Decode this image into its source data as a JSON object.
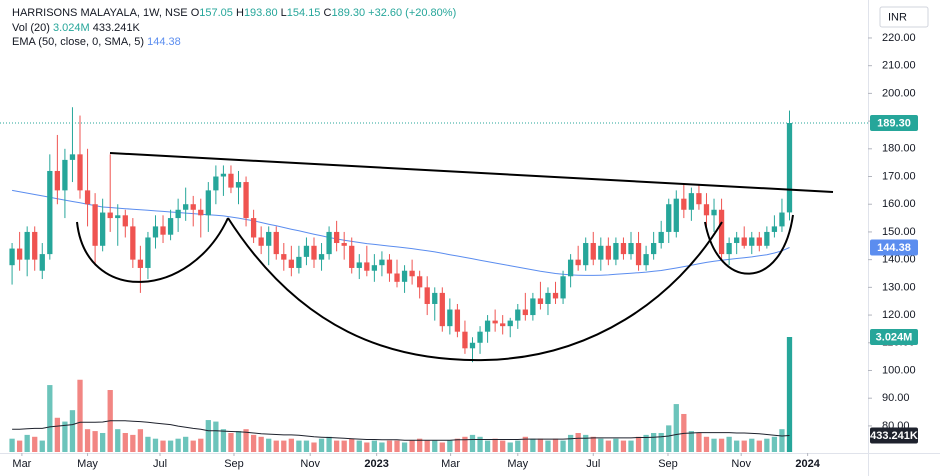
{
  "chart_data": {
    "type": "candlestick",
    "legend": {
      "symbol": "HARRISONS MALAYALA, 1W, NSE",
      "ohlc": [
        {
          "key": "O",
          "value": "157.05"
        },
        {
          "key": "H",
          "value": "193.80"
        },
        {
          "key": "L",
          "value": "154.15"
        },
        {
          "key": "C",
          "value": "189.30"
        }
      ],
      "change": "+32.60 (+20.80%)",
      "volume_name": "Vol (20)",
      "ema_name": "EMA (50, close, 0, SMA, 5)"
    },
    "currency": "INR",
    "up_color": "#26a69a",
    "down_color": "#ef5350",
    "up_volume_color": "#6cc4bb",
    "down_volume_color": "#f28683",
    "grid": false,
    "xlim": [
      -1.6,
      113.4
    ],
    "xticks": [
      {
        "value": 1.3,
        "label": "Mar"
      },
      {
        "value": 10,
        "label": "May"
      },
      {
        "value": 19.6,
        "label": "Jul"
      },
      {
        "value": 29.4,
        "label": "Sep"
      },
      {
        "value": 39.5,
        "label": "Nov"
      },
      {
        "value": 48.3,
        "label": "2023"
      },
      {
        "value": 58.1,
        "label": "Mar"
      },
      {
        "value": 67,
        "label": "May"
      },
      {
        "value": 77,
        "label": "Jul"
      },
      {
        "value": 86.9,
        "label": "Sep"
      },
      {
        "value": 96.6,
        "label": "Nov"
      },
      {
        "value": 105.4,
        "label": "2024"
      }
    ],
    "ylim": [
      69.5,
      233.7
    ],
    "yticks": [
      {
        "value": 220,
        "label": "220.00"
      },
      {
        "value": 210,
        "label": "210.00"
      },
      {
        "value": 200,
        "label": "200.00"
      },
      {
        "value": 190,
        "label": "190.00"
      },
      {
        "value": 180,
        "label": "180.00"
      },
      {
        "value": 170,
        "label": "170.00"
      },
      {
        "value": 160,
        "label": "160.00"
      },
      {
        "value": 150,
        "label": "150.00"
      },
      {
        "value": 140,
        "label": "140.00"
      },
      {
        "value": 130,
        "label": "130.00"
      },
      {
        "value": 120,
        "label": "120.00"
      },
      {
        "value": 110,
        "label": "110.00"
      },
      {
        "value": 100,
        "label": "100.00"
      },
      {
        "value": 90,
        "label": "90.00"
      },
      {
        "value": 80,
        "label": "80.00"
      }
    ],
    "open": [
      138,
      144,
      140,
      150,
      136,
      142,
      172,
      165,
      176,
      178,
      165,
      160,
      145,
      157,
      155,
      156,
      152,
      140,
      137,
      148,
      152,
      149,
      155,
      158,
      160,
      158,
      156,
      165,
      170,
      171,
      166,
      168,
      155,
      148,
      145,
      150,
      142,
      140,
      137,
      141,
      145,
      140,
      142,
      150,
      146,
      145,
      137,
      139,
      136,
      138,
      140,
      135,
      132,
      136,
      134,
      130,
      124,
      128,
      116,
      122,
      114,
      108,
      110,
      114,
      118,
      117,
      116,
      118,
      122,
      120,
      126,
      124,
      128,
      126,
      134,
      140,
      138,
      146,
      140,
      145,
      140,
      146,
      142,
      146,
      138,
      142,
      146,
      150,
      150,
      162,
      158,
      164,
      160,
      156,
      158,
      142,
      146,
      148,
      145,
      148,
      145,
      150,
      152,
      157.05
    ],
    "high": [
      146,
      150,
      152,
      152,
      146,
      178,
      185,
      180,
      195,
      192,
      180,
      164,
      162,
      178,
      160,
      158,
      155,
      145,
      150,
      156,
      156,
      158,
      162,
      166,
      163,
      162,
      168,
      174,
      174,
      174,
      172,
      170,
      158,
      152,
      152,
      152,
      146,
      145,
      145,
      148,
      148,
      146,
      152,
      154,
      150,
      148,
      142,
      145,
      142,
      143,
      142,
      140,
      138,
      140,
      136,
      134,
      130,
      130,
      126,
      124,
      118,
      112,
      116,
      120,
      122,
      120,
      119,
      124,
      128,
      128,
      132,
      130,
      132,
      136,
      142,
      145,
      148,
      150,
      148,
      148,
      148,
      148,
      150,
      150,
      145,
      150,
      154,
      162,
      165,
      167,
      166,
      167,
      164,
      162,
      162,
      148,
      150,
      152,
      150,
      150,
      152,
      156,
      162,
      193.8
    ],
    "low": [
      131,
      136,
      134,
      136,
      133,
      140,
      160,
      155,
      168,
      162,
      152,
      138,
      143,
      150,
      145,
      148,
      137,
      128,
      133,
      144,
      146,
      147,
      150,
      154,
      152,
      148,
      150,
      160,
      163,
      164,
      160,
      152,
      146,
      142,
      138,
      140,
      136,
      134,
      135,
      138,
      137,
      136,
      140,
      143,
      140,
      135,
      133,
      134,
      132,
      134,
      132,
      130,
      128,
      131,
      126,
      120,
      118,
      114,
      113,
      112,
      106,
      103,
      106,
      110,
      114,
      113,
      112,
      115,
      118,
      118,
      122,
      120,
      124,
      124,
      130,
      136,
      136,
      138,
      136,
      138,
      138,
      140,
      140,
      136,
      136,
      140,
      144,
      146,
      148,
      155,
      154,
      158,
      152,
      150,
      140,
      138,
      142,
      144,
      142,
      143,
      144,
      148,
      150,
      154.15
    ],
    "close": [
      144,
      140,
      150,
      140,
      142,
      172,
      165,
      176,
      178,
      165,
      160,
      145,
      157,
      155,
      156,
      152,
      140,
      137,
      148,
      152,
      149,
      155,
      158,
      160,
      158,
      156,
      165,
      170,
      171,
      166,
      168,
      155,
      148,
      145,
      150,
      142,
      140,
      137,
      141,
      145,
      140,
      142,
      150,
      146,
      145,
      137,
      139,
      136,
      138,
      140,
      135,
      132,
      136,
      134,
      130,
      124,
      128,
      116,
      122,
      114,
      108,
      110,
      114,
      118,
      117,
      116,
      118,
      122,
      120,
      126,
      124,
      128,
      126,
      134,
      140,
      138,
      146,
      140,
      145,
      140,
      146,
      142,
      146,
      138,
      142,
      146,
      150,
      160,
      162,
      158,
      164,
      160,
      156,
      158,
      142,
      146,
      148,
      145,
      148,
      145,
      150,
      152,
      157,
      189.3
    ],
    "close_label": "189.30",
    "volume": [
      0.35,
      0.3,
      0.45,
      0.4,
      0.3,
      1.76,
      0.9,
      0.8,
      1.1,
      1.9,
      0.6,
      0.55,
      0.5,
      1.63,
      0.6,
      0.5,
      0.45,
      0.6,
      0.4,
      0.35,
      0.3,
      0.3,
      0.35,
      0.4,
      0.3,
      0.35,
      0.84,
      0.8,
      0.6,
      0.5,
      0.55,
      0.6,
      0.45,
      0.4,
      0.35,
      0.3,
      0.3,
      0.35,
      0.3,
      0.3,
      0.25,
      0.35,
      0.4,
      0.3,
      0.3,
      0.35,
      0.3,
      0.25,
      0.3,
      0.25,
      0.3,
      0.3,
      0.25,
      0.3,
      0.35,
      0.3,
      0.3,
      0.25,
      0.3,
      0.35,
      0.4,
      0.45,
      0.4,
      0.3,
      0.35,
      0.3,
      0.25,
      0.3,
      0.4,
      0.35,
      0.35,
      0.3,
      0.35,
      0.3,
      0.45,
      0.5,
      0.45,
      0.4,
      0.35,
      0.3,
      0.35,
      0.3,
      0.3,
      0.4,
      0.45,
      0.5,
      0.5,
      0.7,
      1.26,
      1.0,
      0.55,
      0.5,
      0.4,
      0.35,
      0.35,
      0.4,
      0.3,
      0.3,
      0.35,
      0.3,
      0.35,
      0.4,
      0.6,
      3.024
    ],
    "volume_label": "3.024M",
    "volume_color": "#1e222d",
    "volume_ma": [
      0.6,
      0.6,
      0.61,
      0.62,
      0.62,
      0.66,
      0.68,
      0.7,
      0.72,
      0.78,
      0.78,
      0.78,
      0.79,
      0.82,
      0.82,
      0.82,
      0.81,
      0.8,
      0.78,
      0.76,
      0.74,
      0.72,
      0.68,
      0.65,
      0.62,
      0.6,
      0.56,
      0.56,
      0.55,
      0.54,
      0.53,
      0.52,
      0.5,
      0.48,
      0.47,
      0.46,
      0.45,
      0.45,
      0.44,
      0.42,
      0.4,
      0.39,
      0.38,
      0.37,
      0.36,
      0.35,
      0.34,
      0.33,
      0.33,
      0.32,
      0.32,
      0.32,
      0.31,
      0.31,
      0.31,
      0.31,
      0.31,
      0.31,
      0.31,
      0.32,
      0.32,
      0.33,
      0.33,
      0.33,
      0.33,
      0.33,
      0.33,
      0.33,
      0.34,
      0.34,
      0.34,
      0.34,
      0.34,
      0.34,
      0.35,
      0.36,
      0.36,
      0.37,
      0.37,
      0.37,
      0.37,
      0.37,
      0.37,
      0.38,
      0.38,
      0.39,
      0.4,
      0.42,
      0.46,
      0.49,
      0.5,
      0.51,
      0.51,
      0.51,
      0.51,
      0.51,
      0.5,
      0.5,
      0.49,
      0.48,
      0.46,
      0.44,
      0.42,
      0.433
    ],
    "volume_ma_label": "433.241K",
    "ema": [
      165,
      164.5,
      164,
      163.5,
      163,
      162.5,
      162,
      161.5,
      161,
      160.5,
      160,
      159.5,
      159,
      158.8,
      158.6,
      158.4,
      158.2,
      158,
      157.8,
      157.6,
      157.4,
      157.2,
      157,
      156.8,
      156.6,
      156.4,
      156.2,
      156,
      155.8,
      155.4,
      155,
      154.5,
      154,
      153.4,
      152.8,
      152.2,
      151.6,
      151,
      150.4,
      149.8,
      149.2,
      148.6,
      148,
      147.5,
      147,
      146.6,
      146.2,
      145.8,
      145.5,
      145.2,
      144.9,
      144.6,
      144.3,
      144,
      143.6,
      143.2,
      142.8,
      142.3,
      141.8,
      141.3,
      140.8,
      140.3,
      139.8,
      139.3,
      138.8,
      138.3,
      137.8,
      137.3,
      136.8,
      136.3,
      135.8,
      135.4,
      135,
      134.7,
      134.5,
      134.4,
      134.3,
      134.3,
      134.4,
      134.5,
      134.7,
      134.9,
      135.1,
      135.3,
      135.5,
      135.8,
      136.1,
      136.5,
      137,
      137.5,
      138,
      138.5,
      139,
      139.4,
      139.8,
      140.1,
      140.4,
      140.7,
      141,
      141.4,
      141.8,
      142.4,
      143.2,
      144.38
    ],
    "ema_label": "144.38",
    "ema_color": "#5b8def"
  }
}
